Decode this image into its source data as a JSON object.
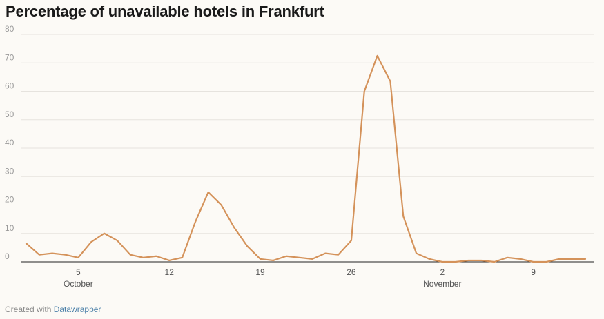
{
  "header": {
    "title": "Percentage of unavailable hotels in Frankfurt"
  },
  "footer": {
    "prefix": "Created with",
    "brand": "Datawrapper"
  },
  "colors": {
    "line": "#d4925a",
    "grid": "#e6e3de",
    "axis": "#222222",
    "tick_text": "#9a9a9a",
    "label_text": "#555555"
  },
  "chart_data": {
    "type": "line",
    "title": "Percentage of unavailable hotels in Frankfurt",
    "xlabel": "",
    "ylabel": "",
    "ylim": [
      0,
      80
    ],
    "y_ticks": [
      0,
      10,
      20,
      30,
      40,
      50,
      60,
      70,
      80
    ],
    "grid": true,
    "x_ticks": [
      {
        "day": 5,
        "label": "5",
        "month_label": "October"
      },
      {
        "day": 12,
        "label": "12",
        "month_label": ""
      },
      {
        "day": 19,
        "label": "19",
        "month_label": ""
      },
      {
        "day": 26,
        "label": "26",
        "month_label": ""
      },
      {
        "day": 33,
        "label": "2",
        "month_label": "November"
      },
      {
        "day": 40,
        "label": "9",
        "month_label": ""
      }
    ],
    "series": [
      {
        "name": "",
        "x": [
          1,
          2,
          3,
          4,
          5,
          6,
          7,
          8,
          9,
          10,
          11,
          12,
          13,
          14,
          15,
          16,
          17,
          18,
          19,
          20,
          21,
          22,
          23,
          24,
          25,
          26,
          27,
          28,
          29,
          30,
          31,
          32,
          33,
          34,
          35,
          36,
          37,
          38,
          39,
          40,
          41,
          42,
          43,
          44
        ],
        "values": [
          6.5,
          2.5,
          3,
          2.5,
          1.5,
          7,
          10,
          7.5,
          2.5,
          1.5,
          2,
          0.5,
          1.5,
          14,
          24.5,
          20,
          12,
          5.5,
          1,
          0.5,
          2,
          1.5,
          1,
          3,
          2.5,
          7.5,
          60,
          72.5,
          63.5,
          16,
          3,
          1,
          0,
          0,
          0.5,
          0.5,
          0,
          1.5,
          1,
          0,
          0,
          1,
          1,
          1
        ]
      }
    ]
  }
}
